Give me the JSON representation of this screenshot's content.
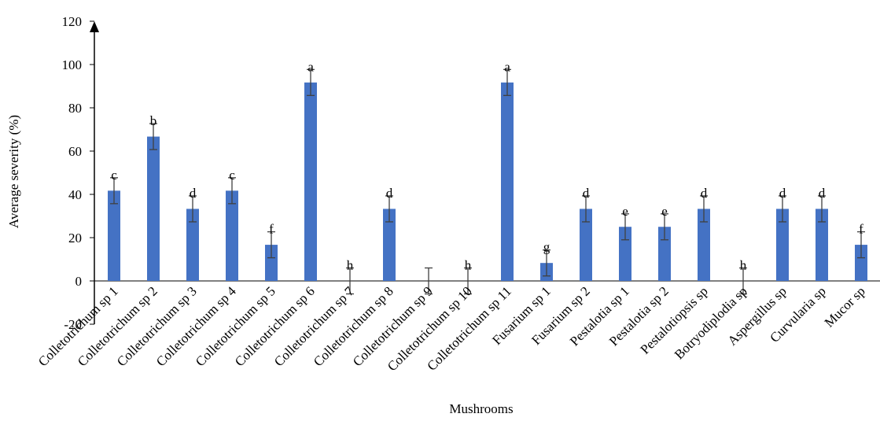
{
  "chart_data": {
    "type": "bar",
    "title": "",
    "xlabel": "Mushrooms",
    "ylabel": "Average severity (%)",
    "ylim": [
      -20,
      120
    ],
    "yticks": [
      -20,
      0,
      20,
      40,
      60,
      80,
      100,
      120
    ],
    "grid": false,
    "legend": "none",
    "bar_color": "#4472C4",
    "categories": [
      "Colletotrichum sp 1",
      "Colletotrichum sp 2",
      "Colletotrichum sp 3",
      "Colletotrichum sp 4",
      "Colletotrichum sp 5",
      "Colletotrichum sp 6",
      "Colletotrichum sp 7",
      "Colletotrichum sp 8",
      "Colletotrichum sp 9",
      "Colletotrichum sp 10",
      "Colletotrichum sp 11",
      "Fusarium sp 1",
      "Fusarium sp 2",
      "Pestalotia sp 1",
      "Pestalotia sp 2",
      "Pestalotiopsis sp",
      "Botryodiplodia sp",
      "Aspergillus sp",
      "Curvularia sp",
      "Mucor sp"
    ],
    "values": [
      41.7,
      66.7,
      33.3,
      41.7,
      16.7,
      91.7,
      0,
      33.3,
      0,
      0,
      91.7,
      8.3,
      33.3,
      25,
      25,
      33.3,
      0,
      33.3,
      33.3,
      16.7
    ],
    "errors": [
      6,
      6,
      6,
      6,
      6,
      6,
      6,
      6,
      6,
      6,
      6,
      6,
      6,
      6,
      6,
      6,
      6,
      6,
      6,
      6
    ],
    "significance": [
      "c",
      "b",
      "d",
      "c",
      "f",
      "a",
      "h",
      "d",
      "",
      "h",
      "a",
      "g",
      "d",
      "e",
      "e",
      "d",
      "h",
      "d",
      "d",
      "f"
    ]
  }
}
